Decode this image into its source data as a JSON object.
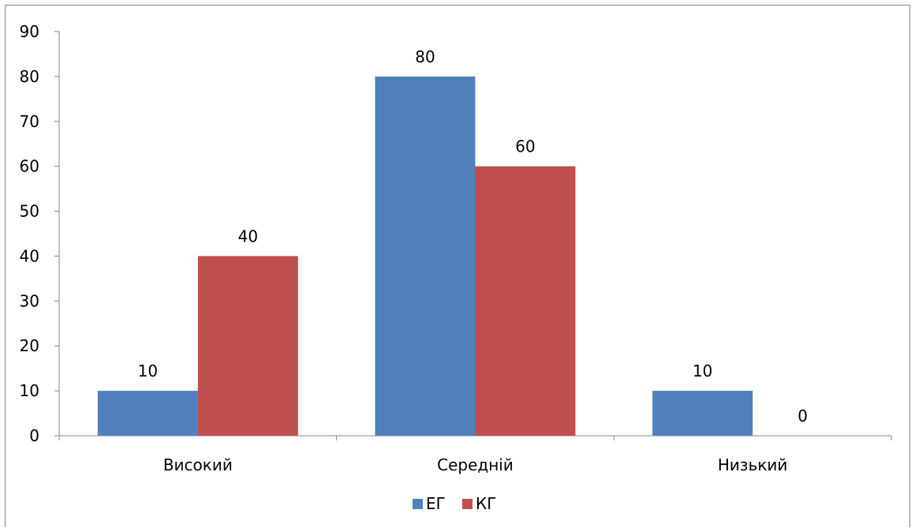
{
  "chart_data": {
    "type": "bar",
    "title": "",
    "xlabel": "",
    "ylabel": "",
    "categories": [
      "Високий",
      "Середній",
      "Низький"
    ],
    "series": [
      {
        "name": "ЕГ",
        "values": [
          10,
          80,
          10
        ],
        "color": "#4F81BD"
      },
      {
        "name": "КГ",
        "values": [
          40,
          60,
          0
        ],
        "color": "#C0504D"
      }
    ],
    "ylim": [
      0,
      90
    ],
    "yticks": [
      0,
      10,
      20,
      30,
      40,
      50,
      60,
      70,
      80,
      90
    ],
    "grid": false,
    "data_labels": true,
    "legend_position": "bottom"
  }
}
